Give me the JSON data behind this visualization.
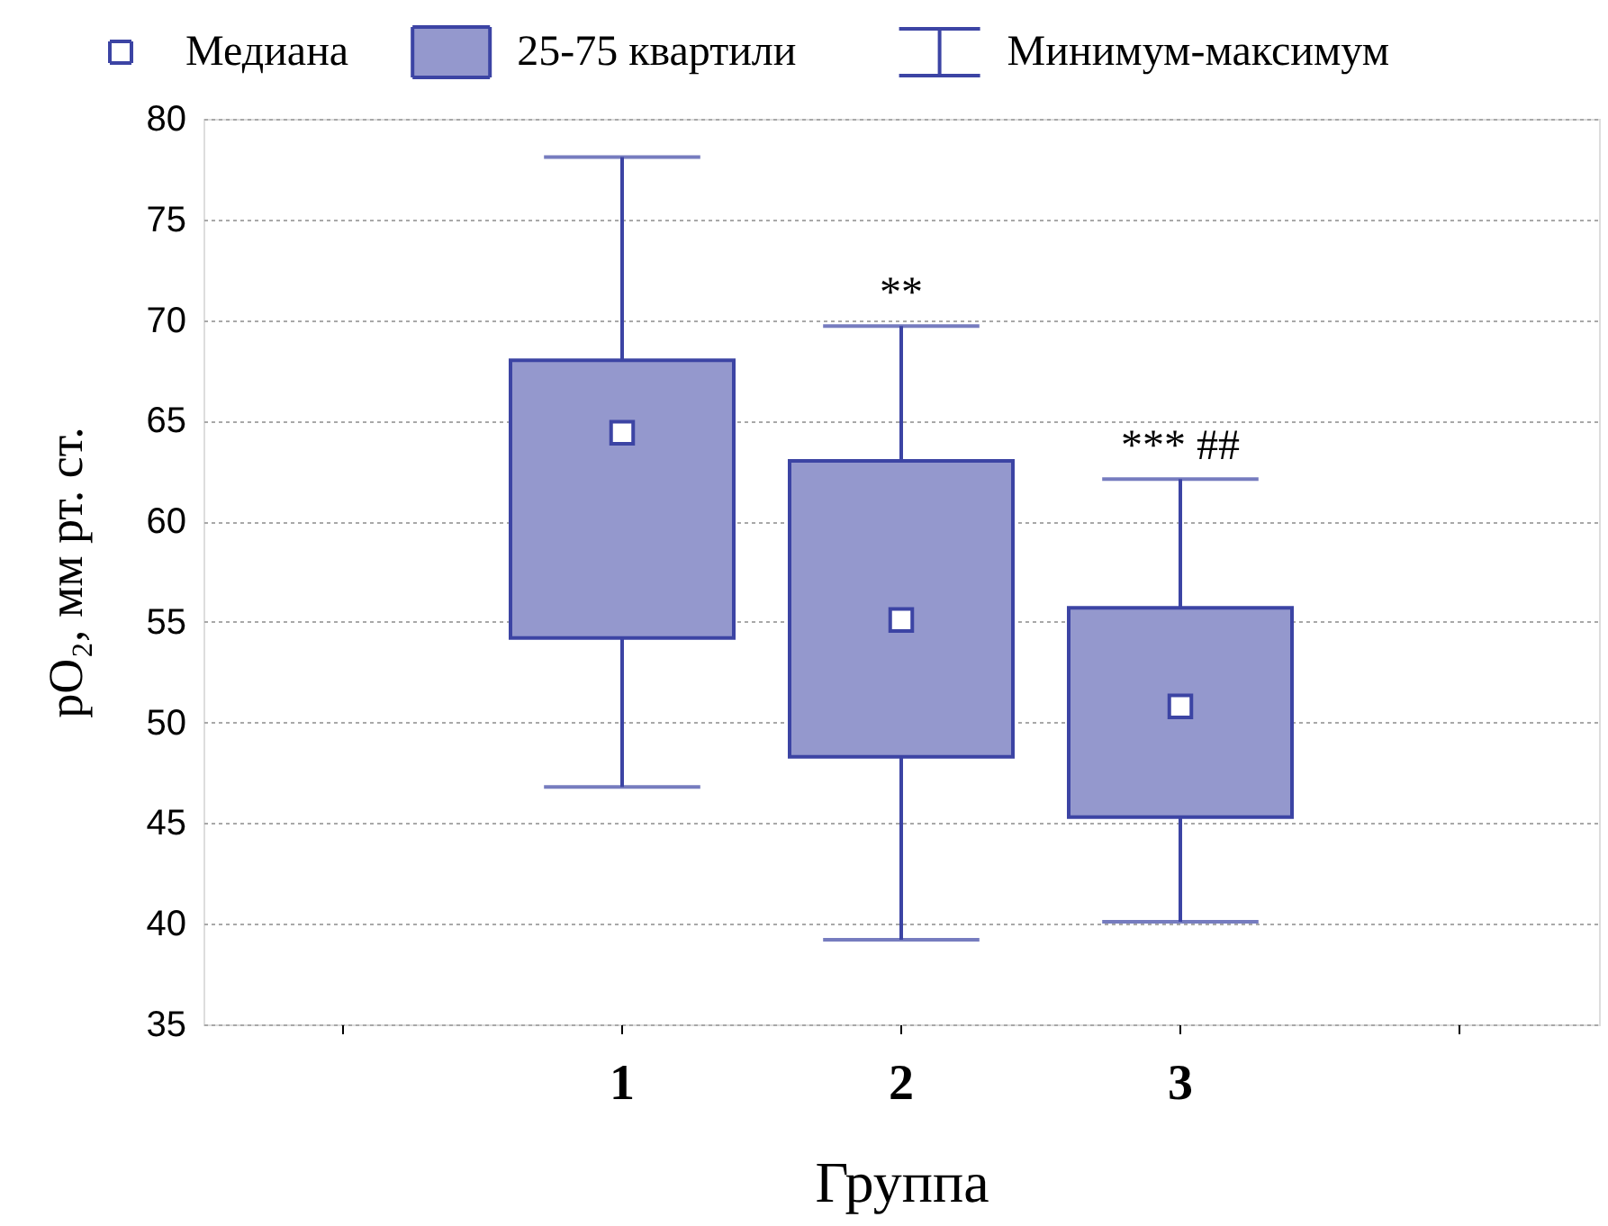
{
  "chart_data": {
    "type": "box",
    "categories": [
      null,
      "1",
      "2",
      "3",
      null
    ],
    "boxes": [
      null,
      {
        "low": 46.8,
        "q1": 54.2,
        "median": 64.4,
        "q3": 68.0,
        "high": 78.1
      },
      {
        "low": 39.2,
        "q1": 48.3,
        "median": 55.1,
        "q3": 63.0,
        "high": 69.7
      },
      {
        "low": 40.1,
        "q1": 45.3,
        "median": 50.8,
        "q3": 55.7,
        "high": 62.1
      },
      null
    ],
    "color": "#3c44a4",
    "xlabel": "Группа",
    "ylabel": "pO₂, мм рт. ст.",
    "ylim": [
      35,
      80
    ],
    "yticks": [
      35,
      40,
      45,
      50,
      55,
      60,
      65,
      70,
      75,
      80
    ],
    "grid": "y",
    "marker": "square",
    "annotations": [
      "Медиана",
      "25-75 квартили",
      "Минимум-максимум",
      {
        "text": "**",
        "x": "2",
        "y": 69.7
      },
      {
        "text": "*** ##",
        "x": "3",
        "y": 62.1
      }
    ]
  }
}
